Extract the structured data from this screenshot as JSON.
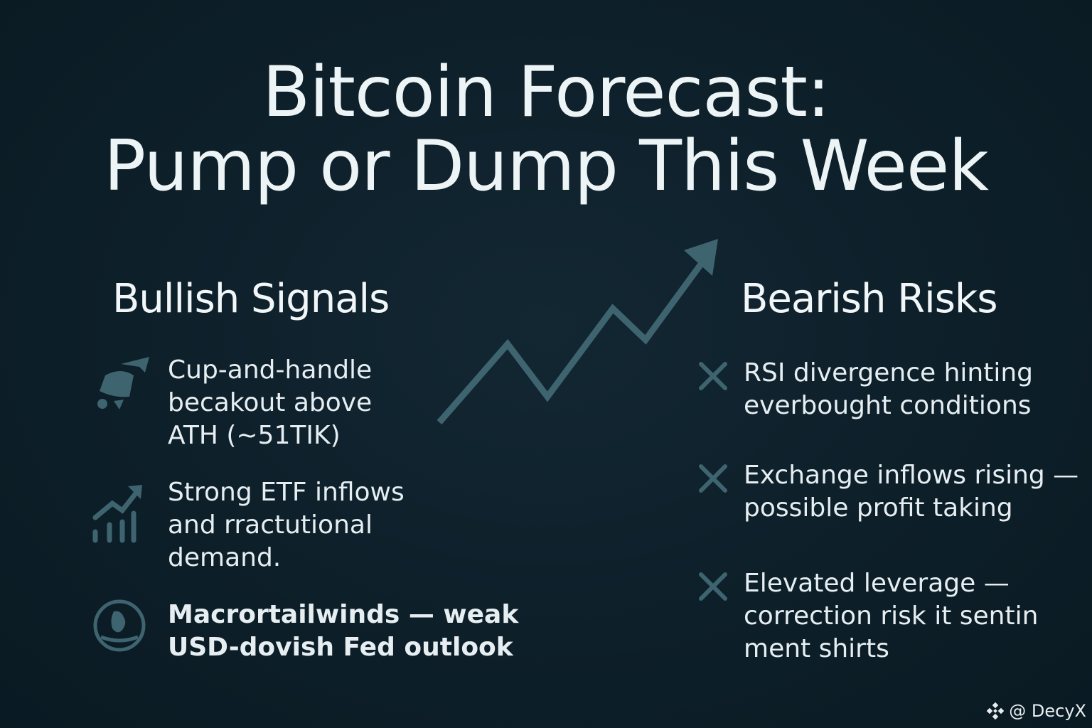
{
  "title": {
    "line1": "Bitcoin Forecast:",
    "line2": "Pump or Dump This Week"
  },
  "bullish": {
    "heading": "Bullish Signals",
    "items": [
      {
        "icon": "rocket-icon",
        "text": "Cup-and-handle\nbecakout above\nATH (~51TIK)"
      },
      {
        "icon": "bar-chart-up-icon",
        "text": "Strong ETF inflows\nand rractutional\ndemand."
      },
      {
        "icon": "globe-icon",
        "text": "Macrortailwinds — weak\nUSD-dovish Fed outlook"
      }
    ]
  },
  "bearish": {
    "heading": "Bearish Risks",
    "items": [
      {
        "icon": "x-icon",
        "text": "RSI divergence hinting\neverbought conditions"
      },
      {
        "icon": "x-icon",
        "text": "Exchange inflows rising —\npossible profit  taking"
      },
      {
        "icon": "x-icon",
        "text": "Elevated leverage —\ncorrection risk it sentin\nment shirts"
      }
    ]
  },
  "watermark": "@ DecyX",
  "colors": {
    "background": "#0d1f29",
    "accent": "#3e6470",
    "text": "#e8f0f3"
  }
}
